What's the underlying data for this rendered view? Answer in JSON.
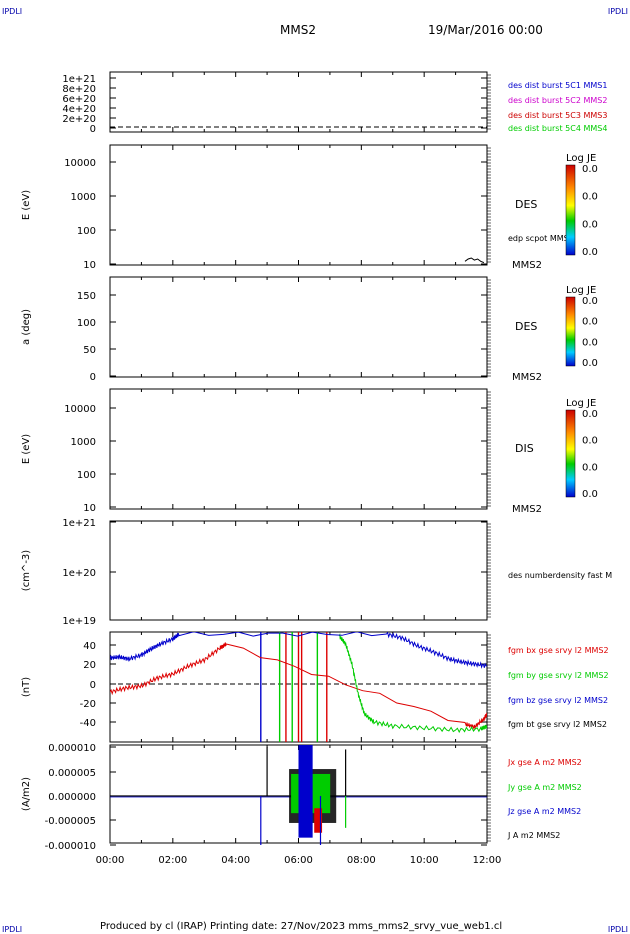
{
  "header": {
    "corner_tl": "IPDLI",
    "corner_tr": "IPDLI",
    "corner_bl": "IPDLI",
    "corner_br": "IPDLI",
    "title": "MMS2",
    "date": "19/Mar/2016 00:00"
  },
  "footer": {
    "text": "Produced by cl (IRAP)   Printing date: 27/Nov/2023   mms_mms2_srvy_vue_web1.cl"
  },
  "colors": {
    "mms1": "#0000cc",
    "mms2": "#cc00cc",
    "mms3": "#cc0000",
    "mms4": "#00cc00",
    "bx": "#dd0000",
    "by": "#00cc00",
    "bz": "#0000cc",
    "bt": "#000000"
  },
  "chart_data": [
    {
      "type": "line",
      "panel": "dist",
      "ylabel": "",
      "yticks": [
        "1e+21",
        "8e+20",
        "6e+20",
        "4e+20",
        "2e+20",
        "0"
      ],
      "ylim": [
        0,
        1.1e+21
      ],
      "legend": [
        {
          "label": "des dist burst 5C1 MMS1",
          "color_key": "mms1"
        },
        {
          "label": "des dist burst 5C2 MMS2",
          "color_key": "mms2"
        },
        {
          "label": "des dist burst 5C3 MMS3",
          "color_key": "mms3"
        },
        {
          "label": "des dist burst 5C4 MMS4",
          "color_key": "mms4"
        }
      ],
      "series": [
        {
          "name": "",
          "values": []
        }
      ]
    },
    {
      "type": "heatmap",
      "panel": "des_energy",
      "ylabel": "E (eV)",
      "yticks": [
        "10000",
        "1000",
        "100",
        "10"
      ],
      "scale": "log",
      "ylim": [
        10,
        30000
      ],
      "label": "DES",
      "sublabel": "edp scpot MMS2",
      "spacecraft": "MMS2",
      "colorbar": {
        "title": "Log JE",
        "ticks": [
          "0.0",
          "0.0",
          "0.0",
          "0.0"
        ]
      },
      "scpot_series": {
        "x": [
          11.3,
          11.4,
          11.5,
          11.6,
          11.7,
          11.8,
          11.9
        ],
        "y": [
          12,
          14,
          15,
          13,
          14,
          12,
          11
        ]
      }
    },
    {
      "type": "heatmap",
      "panel": "des_pitch",
      "ylabel": "a (deg)",
      "yticks": [
        "150",
        "100",
        "50",
        "0"
      ],
      "ylim": [
        0,
        180
      ],
      "label": "DES",
      "spacecraft": "MMS2",
      "colorbar": {
        "title": "Log JE",
        "ticks": [
          "0.0",
          "0.0",
          "0.0",
          "0.0"
        ]
      }
    },
    {
      "type": "heatmap",
      "panel": "dis_energy",
      "ylabel": "E (eV)",
      "yticks": [
        "10000",
        "1000",
        "100",
        "10"
      ],
      "scale": "log",
      "ylim": [
        10,
        30000
      ],
      "label": "DIS",
      "spacecraft": "MMS2",
      "colorbar": {
        "title": "Log JE",
        "ticks": [
          "0.0",
          "0.0",
          "0.0",
          "0.0"
        ]
      }
    },
    {
      "type": "line",
      "panel": "density",
      "ylabel": "(cm^-3)",
      "yticks": [
        "1e+21",
        "1e+20",
        "1e+19"
      ],
      "scale": "log",
      "ylim": [
        1e+19,
        1e+21
      ],
      "legend": [
        {
          "label": "des numberdensity fast M",
          "color_key": "bt"
        }
      ],
      "series": [
        {
          "name": "",
          "values": []
        }
      ]
    },
    {
      "type": "line",
      "panel": "fgm",
      "ylabel": "(nT)",
      "yticks": [
        "40",
        "20",
        "0",
        "-20",
        "-40"
      ],
      "ylim": [
        -50,
        50
      ],
      "legend": [
        {
          "label": "fgm bx gse srvy l2 MMS2",
          "color_key": "bx"
        },
        {
          "label": "fgm by gse srvy l2 MMS2",
          "color_key": "by"
        },
        {
          "label": "fgm bz gse srvy l2 MMS2",
          "color_key": "bz"
        },
        {
          "label": "fgm bt gse srvy l2 MMS2",
          "color_key": "bt"
        }
      ],
      "series": [
        {
          "name": "fgm bx gse srvy l2 MMS2",
          "color_key": "bx",
          "x": [
            0.0,
            0.5,
            1.0,
            1.5,
            2.0,
            2.5,
            3.0,
            3.5,
            3.7,
            11.3,
            11.6,
            11.9,
            12.0
          ],
          "y": [
            -8,
            -4,
            -2,
            6,
            10,
            18,
            24,
            36,
            40,
            -40,
            -43,
            -35,
            -30
          ]
        },
        {
          "name": "fgm by gse srvy l2 MMS2",
          "color_key": "by",
          "x": [
            7.3,
            7.5,
            7.7,
            7.9,
            8.1,
            8.4,
            9.0,
            10.0,
            11.0,
            11.8,
            12.0
          ],
          "y": [
            48,
            40,
            20,
            -10,
            -30,
            -38,
            -42,
            -44,
            -46,
            -45,
            -42
          ]
        },
        {
          "name": "fgm bz gse srvy l2 MMS2",
          "color_key": "bz",
          "x": [
            0.0,
            0.3,
            0.6,
            1.0,
            1.3,
            1.6,
            2.0,
            2.2,
            8.8,
            9.3,
            9.8,
            10.3,
            10.8,
            11.2,
            11.6,
            12.0
          ],
          "y": [
            26,
            27,
            25,
            29,
            35,
            40,
            45,
            50,
            50,
            46,
            38,
            32,
            25,
            22,
            20,
            18
          ]
        }
      ],
      "spikes": [
        {
          "x": 4.8,
          "color_key": "bz"
        },
        {
          "x": 5.4,
          "color_key": "by"
        },
        {
          "x": 5.6,
          "color_key": "bx"
        },
        {
          "x": 5.8,
          "color_key": "by"
        },
        {
          "x": 6.0,
          "color_key": "bx"
        },
        {
          "x": 6.1,
          "color_key": "bx"
        },
        {
          "x": 6.6,
          "color_key": "by"
        },
        {
          "x": 6.9,
          "color_key": "bx"
        }
      ]
    },
    {
      "type": "line",
      "panel": "current",
      "ylabel": "(A/m2)",
      "yticks": [
        "0.000010",
        "0.000005",
        "0.000000",
        "-0.000005",
        "-0.000010"
      ],
      "ylim": [
        -1e-05,
        1e-05
      ],
      "legend": [
        {
          "label": "Jx gse A m2 MMS2",
          "color_key": "bx"
        },
        {
          "label": "Jy gse A m2 MMS2",
          "color_key": "by"
        },
        {
          "label": "Jz gse A m2 MMS2",
          "color_key": "bz"
        },
        {
          "label": "J A m2 MMS2",
          "color_key": "bt"
        }
      ],
      "burst": {
        "start": 5.7,
        "end": 7.2
      },
      "spikes": [
        {
          "x": 4.8,
          "y": -1e-05,
          "color_key": "bz"
        },
        {
          "x": 5.0,
          "y": 1e-05,
          "color_key": "bt"
        },
        {
          "x": 6.7,
          "y": -1e-05,
          "color_key": "bz"
        },
        {
          "x": 7.5,
          "y": 9.5e-06,
          "color_key": "bt"
        },
        {
          "x": 7.5,
          "y": -6.5e-06,
          "color_key": "by"
        }
      ]
    }
  ],
  "xaxis": {
    "ticks": [
      "00:00",
      "02:00",
      "04:00",
      "06:00",
      "08:00",
      "10:00",
      "12:00"
    ],
    "xlim": [
      0,
      12
    ]
  }
}
